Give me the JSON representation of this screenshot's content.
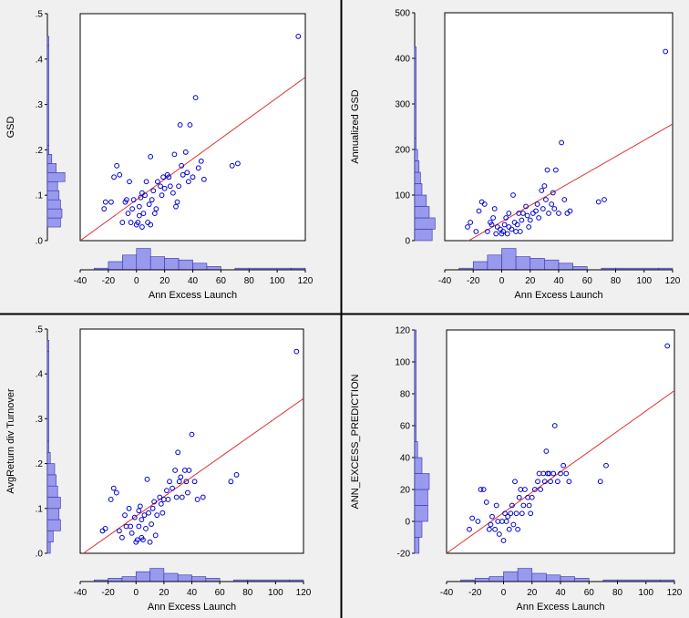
{
  "colors": {
    "panel_bg": "#f0f0f0",
    "plot_bg": "#ffffff",
    "marker": "#0000cc",
    "fit_line": "#e03030",
    "histogram_fill": "#9999ee",
    "histogram_edge": "#3333aa",
    "divider": "#000000"
  },
  "chart_data": [
    {
      "type": "scatter",
      "xlabel": "Ann Excess Launch",
      "ylabel": "GSD",
      "xlim": [
        -40,
        120
      ],
      "ylim": [
        0,
        0.5
      ],
      "x_ticks": [
        "-40",
        "-20",
        "0",
        "20",
        "40",
        "60",
        "80",
        "100",
        "120"
      ],
      "y_ticks": [
        ".0",
        ".1",
        ".2",
        ".3",
        ".4",
        ".5"
      ],
      "fit_line": [
        [
          -40,
          0.0
        ],
        [
          120,
          0.36
        ]
      ],
      "points": [
        [
          -23,
          0.07
        ],
        [
          -22,
          0.085
        ],
        [
          -18,
          0.085
        ],
        [
          -16,
          0.14
        ],
        [
          -14,
          0.165
        ],
        [
          -12,
          0.145
        ],
        [
          -10,
          0.04
        ],
        [
          -8,
          0.085
        ],
        [
          -7,
          0.09
        ],
        [
          -6,
          0.06
        ],
        [
          -5,
          0.13
        ],
        [
          -4,
          0.04
        ],
        [
          -3,
          0.07
        ],
        [
          -2,
          0.09
        ],
        [
          0,
          0.035
        ],
        [
          1,
          0.04
        ],
        [
          2,
          0.055
        ],
        [
          2,
          0.075
        ],
        [
          3,
          0.095
        ],
        [
          4,
          0.03
        ],
        [
          4,
          0.105
        ],
        [
          5,
          0.06
        ],
        [
          6,
          0.1
        ],
        [
          7,
          0.13
        ],
        [
          8,
          0.04
        ],
        [
          9,
          0.08
        ],
        [
          10,
          0.035
        ],
        [
          10,
          0.185
        ],
        [
          11,
          0.09
        ],
        [
          12,
          0.11
        ],
        [
          13,
          0.06
        ],
        [
          14,
          0.07
        ],
        [
          15,
          0.13
        ],
        [
          17,
          0.12
        ],
        [
          18,
          0.1
        ],
        [
          19,
          0.14
        ],
        [
          20,
          0.115
        ],
        [
          22,
          0.145
        ],
        [
          23,
          0.14
        ],
        [
          24,
          0.12
        ],
        [
          26,
          0.105
        ],
        [
          27,
          0.19
        ],
        [
          28,
          0.075
        ],
        [
          29,
          0.085
        ],
        [
          30,
          0.12
        ],
        [
          31,
          0.255
        ],
        [
          32,
          0.165
        ],
        [
          33,
          0.145
        ],
        [
          35,
          0.195
        ],
        [
          36,
          0.15
        ],
        [
          37,
          0.13
        ],
        [
          38,
          0.255
        ],
        [
          40,
          0.14
        ],
        [
          42,
          0.315
        ],
        [
          44,
          0.16
        ],
        [
          46,
          0.175
        ],
        [
          48,
          0.135
        ],
        [
          68,
          0.165
        ],
        [
          72,
          0.17
        ],
        [
          115,
          0.45
        ]
      ],
      "x_hist": {
        "edges": [
          -30,
          -20,
          -10,
          0,
          10,
          20,
          30,
          40,
          50,
          60,
          70,
          80,
          110,
          120
        ],
        "counts": [
          1,
          5,
          9,
          13,
          8,
          7,
          6,
          4,
          2,
          0,
          1,
          1,
          1
        ]
      },
      "y_hist": {
        "edges": [
          0.03,
          0.05,
          0.07,
          0.09,
          0.11,
          0.13,
          0.15,
          0.17,
          0.19,
          0.21,
          0.43,
          0.45
        ],
        "counts": [
          9,
          10,
          9,
          8,
          7,
          12,
          6,
          3,
          1,
          1,
          1
        ]
      }
    },
    {
      "type": "scatter",
      "xlabel": "Ann Excess Launch",
      "ylabel": "Annualized GSD",
      "xlim": [
        -40,
        120
      ],
      "ylim": [
        0,
        500
      ],
      "x_ticks": [
        "-40",
        "-20",
        "0",
        "20",
        "40",
        "60",
        "80",
        "100",
        "120"
      ],
      "y_ticks": [
        "0",
        "100",
        "200",
        "300",
        "400",
        "500"
      ],
      "fit_line": [
        [
          -40,
          -30
        ],
        [
          120,
          256
        ]
      ],
      "points": [
        [
          -24,
          30
        ],
        [
          -22,
          40
        ],
        [
          -18,
          20
        ],
        [
          -16,
          65
        ],
        [
          -14,
          85
        ],
        [
          -12,
          80
        ],
        [
          -10,
          20
        ],
        [
          -8,
          40
        ],
        [
          -7,
          35
        ],
        [
          -6,
          50
        ],
        [
          -5,
          70
        ],
        [
          -4,
          15
        ],
        [
          -3,
          30
        ],
        [
          -1,
          25
        ],
        [
          0,
          15
        ],
        [
          1,
          20
        ],
        [
          2,
          35
        ],
        [
          3,
          50
        ],
        [
          4,
          15
        ],
        [
          5,
          60
        ],
        [
          5,
          30
        ],
        [
          7,
          25
        ],
        [
          8,
          100
        ],
        [
          9,
          40
        ],
        [
          10,
          20
        ],
        [
          11,
          35
        ],
        [
          12,
          60
        ],
        [
          13,
          20
        ],
        [
          14,
          45
        ],
        [
          15,
          60
        ],
        [
          17,
          75
        ],
        [
          18,
          55
        ],
        [
          19,
          30
        ],
        [
          20,
          45
        ],
        [
          22,
          60
        ],
        [
          24,
          65
        ],
        [
          25,
          80
        ],
        [
          26,
          50
        ],
        [
          28,
          110
        ],
        [
          29,
          70
        ],
        [
          30,
          120
        ],
        [
          31,
          90
        ],
        [
          32,
          155
        ],
        [
          33,
          60
        ],
        [
          35,
          80
        ],
        [
          36,
          105
        ],
        [
          37,
          70
        ],
        [
          38,
          155
        ],
        [
          40,
          60
        ],
        [
          42,
          215
        ],
        [
          44,
          90
        ],
        [
          46,
          60
        ],
        [
          48,
          65
        ],
        [
          68,
          85
        ],
        [
          72,
          90
        ],
        [
          115,
          415
        ]
      ],
      "x_hist": {
        "edges": [
          -30,
          -20,
          -10,
          0,
          10,
          20,
          30,
          40,
          50,
          60,
          70,
          80,
          110,
          120
        ],
        "counts": [
          1,
          5,
          9,
          13,
          8,
          7,
          6,
          4,
          2,
          0,
          1,
          1,
          1
        ]
      },
      "y_hist": {
        "edges": [
          0,
          25,
          50,
          75,
          100,
          125,
          150,
          175,
          200,
          225,
          400,
          425
        ],
        "counts": [
          12,
          14,
          10,
          8,
          5,
          4,
          3,
          2,
          1,
          1,
          1
        ]
      }
    },
    {
      "type": "scatter",
      "xlabel": "Ann Excess Launch",
      "ylabel": "AvgReturn div Turnover",
      "xlim": [
        -40,
        120
      ],
      "ylim": [
        0,
        0.5
      ],
      "x_ticks": [
        "-40",
        "-20",
        "0",
        "20",
        "40",
        "60",
        "80",
        "100",
        "120"
      ],
      "y_ticks": [
        ".0",
        ".1",
        ".2",
        ".3",
        ".4",
        ".5"
      ],
      "fit_line": [
        [
          -40,
          -0.005
        ],
        [
          120,
          0.345
        ]
      ],
      "points": [
        [
          -24,
          0.05
        ],
        [
          -22,
          0.055
        ],
        [
          -18,
          0.12
        ],
        [
          -16,
          0.145
        ],
        [
          -14,
          0.135
        ],
        [
          -12,
          0.05
        ],
        [
          -10,
          0.035
        ],
        [
          -8,
          0.085
        ],
        [
          -7,
          0.06
        ],
        [
          -5,
          0.1
        ],
        [
          -4,
          0.06
        ],
        [
          -3,
          0.045
        ],
        [
          -1,
          0.08
        ],
        [
          0,
          0.025
        ],
        [
          1,
          0.03
        ],
        [
          2,
          0.06
        ],
        [
          2,
          0.095
        ],
        [
          3,
          0.105
        ],
        [
          4,
          0.035
        ],
        [
          4,
          0.075
        ],
        [
          5,
          0.03
        ],
        [
          6,
          0.085
        ],
        [
          7,
          0.055
        ],
        [
          8,
          0.165
        ],
        [
          9,
          0.09
        ],
        [
          10,
          0.025
        ],
        [
          11,
          0.065
        ],
        [
          12,
          0.1
        ],
        [
          13,
          0.115
        ],
        [
          14,
          0.04
        ],
        [
          15,
          0.085
        ],
        [
          17,
          0.125
        ],
        [
          18,
          0.11
        ],
        [
          19,
          0.09
        ],
        [
          20,
          0.12
        ],
        [
          22,
          0.14
        ],
        [
          23,
          0.12
        ],
        [
          24,
          0.16
        ],
        [
          26,
          0.145
        ],
        [
          28,
          0.185
        ],
        [
          29,
          0.125
        ],
        [
          30,
          0.225
        ],
        [
          31,
          0.16
        ],
        [
          32,
          0.17
        ],
        [
          33,
          0.125
        ],
        [
          35,
          0.185
        ],
        [
          36,
          0.16
        ],
        [
          37,
          0.135
        ],
        [
          38,
          0.185
        ],
        [
          40,
          0.265
        ],
        [
          42,
          0.16
        ],
        [
          44,
          0.12
        ],
        [
          48,
          0.125
        ],
        [
          68,
          0.16
        ],
        [
          72,
          0.175
        ],
        [
          115,
          0.45
        ]
      ],
      "x_hist": {
        "edges": [
          -30,
          -20,
          -10,
          0,
          10,
          20,
          30,
          40,
          50,
          60,
          70,
          80,
          110,
          120
        ],
        "counts": [
          1,
          2,
          3,
          6,
          8,
          5,
          4,
          3,
          2,
          0,
          1,
          1,
          1
        ]
      },
      "y_hist": {
        "edges": [
          0.0,
          0.025,
          0.05,
          0.075,
          0.1,
          0.125,
          0.15,
          0.175,
          0.2,
          0.225,
          0.25,
          0.45,
          0.475
        ],
        "counts": [
          2,
          4,
          9,
          8,
          9,
          7,
          6,
          5,
          2,
          1,
          1,
          1
        ]
      }
    },
    {
      "type": "scatter",
      "xlabel": "Ann Excess Launch",
      "ylabel": "ANN_EXCESS_PREDICTION",
      "xlim": [
        -40,
        120
      ],
      "ylim": [
        -20,
        120
      ],
      "x_ticks": [
        "-40",
        "-20",
        "0",
        "20",
        "40",
        "60",
        "80",
        "100",
        "120"
      ],
      "y_ticks": [
        "-20",
        "0",
        "20",
        "40",
        "60",
        "80",
        "100",
        "120"
      ],
      "fit_line": [
        [
          -40,
          -20
        ],
        [
          120,
          82
        ]
      ],
      "points": [
        [
          -24,
          -5
        ],
        [
          -22,
          2
        ],
        [
          -18,
          0
        ],
        [
          -16,
          20
        ],
        [
          -14,
          20
        ],
        [
          -12,
          12
        ],
        [
          -10,
          -5
        ],
        [
          -9,
          -2
        ],
        [
          -8,
          3
        ],
        [
          -6,
          -5
        ],
        [
          -5,
          10
        ],
        [
          -4,
          0
        ],
        [
          -3,
          -8
        ],
        [
          -1,
          0
        ],
        [
          0,
          -12
        ],
        [
          1,
          5
        ],
        [
          2,
          0
        ],
        [
          3,
          3
        ],
        [
          4,
          -5
        ],
        [
          5,
          5
        ],
        [
          6,
          10
        ],
        [
          7,
          -2
        ],
        [
          8,
          25
        ],
        [
          9,
          5
        ],
        [
          10,
          -5
        ],
        [
          11,
          15
        ],
        [
          12,
          20
        ],
        [
          13,
          5
        ],
        [
          14,
          10
        ],
        [
          15,
          20
        ],
        [
          17,
          15
        ],
        [
          18,
          10
        ],
        [
          19,
          5
        ],
        [
          20,
          15
        ],
        [
          22,
          20
        ],
        [
          24,
          25
        ],
        [
          25,
          30
        ],
        [
          26,
          20
        ],
        [
          28,
          30
        ],
        [
          29,
          25
        ],
        [
          30,
          44
        ],
        [
          31,
          30
        ],
        [
          32,
          30
        ],
        [
          33,
          25
        ],
        [
          35,
          30
        ],
        [
          36,
          60
        ],
        [
          38,
          25
        ],
        [
          40,
          30
        ],
        [
          42,
          35
        ],
        [
          44,
          30
        ],
        [
          46,
          25
        ],
        [
          68,
          25
        ],
        [
          72,
          35
        ],
        [
          115,
          110
        ]
      ],
      "x_hist": {
        "edges": [
          -30,
          -20,
          -10,
          0,
          10,
          20,
          30,
          40,
          50,
          60,
          70,
          80,
          110,
          120
        ],
        "counts": [
          1,
          2,
          3,
          6,
          8,
          5,
          4,
          3,
          2,
          0,
          1,
          1,
          1
        ]
      },
      "y_hist": {
        "edges": [
          -20,
          -10,
          0,
          10,
          20,
          30,
          40,
          50,
          60,
          100,
          120
        ],
        "counts": [
          3,
          5,
          9,
          9,
          10,
          5,
          2,
          1,
          1,
          1
        ]
      }
    }
  ]
}
